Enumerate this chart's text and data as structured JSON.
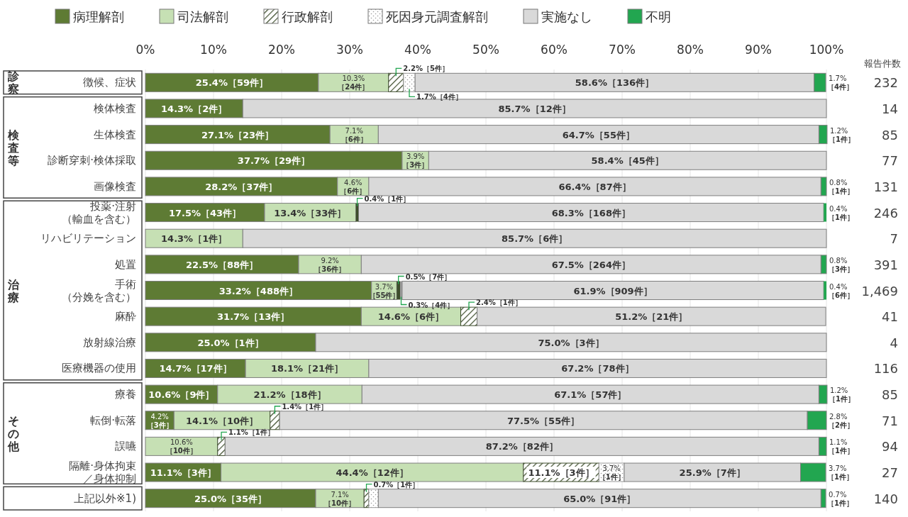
{
  "chart_data": {
    "type": "bar",
    "orientation": "horizontal",
    "stacked": true,
    "categories": [
      "徴候、症状",
      "検体検査",
      "生体検査",
      "診断穿刺·検体採取",
      "画像検査",
      "投薬·注射（輸血を含む）",
      "リハビリテーション",
      "処置",
      "手術（分娩を含む）",
      "麻酔",
      "放射線治療",
      "医療機器の使用",
      "療養",
      "転倒·転落",
      "誤嚥",
      "隔離·身体拘束／身体抑制",
      "上記以外※1)"
    ],
    "series": [
      {
        "name": "病理解剖",
        "color": "#5e7b34",
        "values": [
          25.4,
          14.3,
          27.1,
          37.7,
          28.2,
          17.5,
          null,
          22.5,
          33.2,
          31.7,
          25.0,
          14.7,
          10.6,
          4.2,
          null,
          11.1,
          25.0
        ],
        "value_labels": [
          "25.4%［59件］",
          "14.3%［2件］",
          "27.1%［23件］",
          "37.7%［29件］",
          "28.2%［37件］",
          "17.5%［43件］",
          null,
          "22.5%［88件］",
          "33.2%［488件］",
          "31.7%［13件］",
          "25.0%［1件］",
          "14.7%［17件］",
          "10.6%［9件］",
          "4.2%［3件］",
          null,
          "11.1%［3件］",
          "25.0%［35件］"
        ]
      },
      {
        "name": "司法解剖",
        "color": "#c6e0b4",
        "values": [
          10.3,
          null,
          7.1,
          3.9,
          4.6,
          13.4,
          14.3,
          9.2,
          3.7,
          14.6,
          null,
          18.1,
          21.2,
          14.1,
          10.6,
          44.4,
          7.1
        ],
        "value_labels": [
          "10.3%［24件］",
          null,
          "7.1%［6件］",
          "3.9%［3件］",
          "4.6%［6件］",
          "13.4%［33件］",
          "14.3%［1件］",
          "9.2%［36件］",
          "3.7%［55件］",
          "14.6%［6件］",
          null,
          "18.1%［21件］",
          "21.2%［18件］",
          "14.1%［10件］",
          "10.6%［10件］",
          "44.4%［12件］",
          "7.1%［10件］"
        ]
      },
      {
        "name": "行政解剖",
        "color": "#3d4d2c",
        "values": [
          2.2,
          null,
          null,
          null,
          null,
          0.4,
          null,
          null,
          0.5,
          2.4,
          null,
          null,
          null,
          1.4,
          1.1,
          11.1,
          0.7
        ],
        "value_labels": [
          "2.2%［5件］",
          null,
          null,
          null,
          null,
          "0.4%［1件］",
          null,
          null,
          "0.5%［7件］",
          "2.4%［1件］",
          null,
          null,
          null,
          "1.4%［1件］",
          "1.1%［1件］",
          "11.1%［3件］",
          "0.7%［1件］"
        ]
      },
      {
        "name": "死因身元調査解剖",
        "color": "#9a9a9a",
        "values": [
          1.7,
          null,
          null,
          null,
          null,
          null,
          null,
          null,
          0.3,
          null,
          null,
          null,
          null,
          null,
          null,
          3.7,
          1.4
        ],
        "value_labels": [
          "1.7%［4件］",
          null,
          null,
          null,
          null,
          null,
          null,
          null,
          "0.3%［4件］",
          null,
          null,
          null,
          null,
          null,
          null,
          "3.7%［1件］",
          null
        ]
      },
      {
        "name": "実施なし",
        "color": "#d9d9d9",
        "values": [
          58.6,
          85.7,
          64.7,
          58.4,
          66.4,
          68.3,
          85.7,
          67.5,
          61.9,
          51.2,
          75.0,
          67.2,
          67.1,
          77.5,
          87.2,
          25.9,
          65.0
        ],
        "value_labels": [
          "58.6%［136件］",
          "85.7%［12件］",
          "64.7%［55件］",
          "58.4%［45件］",
          "66.4%［87件］",
          "68.3%［168件］",
          "85.7%［6件］",
          "67.5%［264件］",
          "61.9%［909件］",
          "51.2%［21件］",
          "75.0%［3件］",
          "67.2%［78件］",
          "67.1%［57件］",
          "77.5%［55件］",
          "87.2%［82件］",
          "25.9%［7件］",
          "65.0%［91件］"
        ]
      },
      {
        "name": "不明",
        "color": "#22a650",
        "values": [
          1.7,
          null,
          1.2,
          null,
          0.8,
          0.4,
          null,
          0.8,
          0.4,
          null,
          null,
          null,
          1.2,
          2.8,
          1.1,
          3.7,
          0.7
        ],
        "value_labels": [
          "1.7%［4件］",
          null,
          "1.2%［1件］",
          null,
          "0.8%［1件］",
          "0.4%［1件］",
          null,
          "0.8%［3件］",
          "0.4%［6件］",
          null,
          null,
          null,
          "1.2%［1件］",
          "2.8%［2件］",
          "1.1%［1件］",
          "3.7%［1件］",
          "0.7%［1件］"
        ]
      }
    ],
    "xlim": [
      0,
      100
    ],
    "xticks": [
      {
        "value": 0,
        "label": "0%"
      },
      {
        "value": 10,
        "label": "10%"
      },
      {
        "value": 20,
        "label": "20%"
      },
      {
        "value": 30,
        "label": "30%"
      },
      {
        "value": 40,
        "label": "40%"
      },
      {
        "value": 50,
        "label": "50%"
      },
      {
        "value": 60,
        "label": "60%"
      },
      {
        "value": 70,
        "label": "70%"
      },
      {
        "value": 80,
        "label": "80%"
      },
      {
        "value": 90,
        "label": "90%"
      },
      {
        "value": 100,
        "label": "100%"
      }
    ],
    "grid": "x",
    "legend": "top",
    "y2label": "報告件数",
    "y2_categories": [
      "232",
      "14",
      "85",
      "77",
      "131",
      "246",
      "7",
      "391",
      "1,469",
      "41",
      "4",
      "116",
      "85",
      "71",
      "94",
      "27",
      "140"
    ],
    "annotations": [
      "診察",
      "検査等",
      "治療",
      "その他"
    ]
  }
}
